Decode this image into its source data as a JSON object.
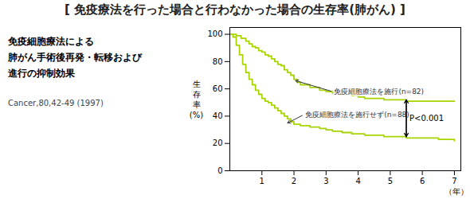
{
  "chart_data": {
    "type": "step",
    "title": "[ 免疫療法を行った場合と行わなかった場合の生存率(肺がん) ]",
    "subtitle": [
      "免疫細胞療法による",
      "肺がん手術後再発・転移および",
      "進行の抑制効果"
    ],
    "xlabel": "（年）",
    "ylabel": "生\n存\n率\n(%)",
    "series": [
      {
        "name": "免疫細胞療法を施行(n=82)",
        "color": "#a8d400",
        "x": [
          0,
          0.1,
          0.2,
          0.35,
          0.5,
          0.6,
          0.7,
          0.8,
          0.9,
          1.0,
          1.1,
          1.2,
          1.3,
          1.4,
          1.5,
          1.6,
          1.7,
          1.8,
          1.9,
          2.0,
          2.1,
          2.2,
          2.5,
          2.8,
          3.0,
          3.2,
          3.5,
          3.8,
          4.0,
          4.2,
          4.5,
          4.8,
          5.0,
          5.2,
          5.5,
          6.0,
          6.5,
          7.0
        ],
        "values": [
          100,
          100,
          99,
          97,
          95,
          93,
          91,
          90,
          88,
          87,
          85,
          84,
          82,
          80,
          78,
          77,
          74,
          72,
          70,
          67,
          65,
          63,
          61,
          59,
          58,
          57,
          56,
          55,
          54,
          53,
          53,
          52,
          52,
          52,
          51,
          51,
          51,
          51
        ]
      },
      {
        "name": "免疫細胞療法を施行せず(n=88)",
        "color": "#a8d400",
        "x": [
          0,
          0.1,
          0.2,
          0.3,
          0.4,
          0.5,
          0.6,
          0.7,
          0.8,
          0.9,
          1.0,
          1.1,
          1.2,
          1.3,
          1.4,
          1.5,
          1.6,
          1.7,
          1.8,
          1.9,
          2.0,
          2.2,
          2.5,
          2.8,
          3.0,
          3.2,
          3.5,
          3.8,
          4.0,
          4.2,
          4.5,
          4.8,
          5.0,
          5.2,
          5.5,
          6.0,
          6.5,
          7.0
        ],
        "values": [
          100,
          98,
          92,
          85,
          78,
          72,
          67,
          63,
          59,
          56,
          53,
          51,
          50,
          48,
          46,
          44,
          42,
          40,
          38,
          36,
          34,
          33,
          32,
          31,
          30,
          29,
          28,
          27,
          27,
          26,
          26,
          25,
          25,
          25,
          24,
          24,
          23,
          22
        ]
      }
    ],
    "annotations": [
      {
        "text": "免疫細胞療法を施行(n=82)",
        "x": 2.05,
        "y": 66,
        "text_x": 3.2,
        "text_y": 58
      },
      {
        "text": "免疫細胞療法を施行せず(n=88)",
        "x": 1.8,
        "y": 35,
        "text_x": 2.3,
        "text_y": 41
      },
      {
        "text": "P<0.001",
        "x": 5.5,
        "y": 25,
        "y2": 52,
        "text_x": 5.6,
        "text_y": 38.5
      },
      {
        "text": "Cancer,80,42-49 (1997)"
      }
    ],
    "xlim": [
      0,
      7.2
    ],
    "ylim": [
      0,
      105
    ],
    "xticks": [
      1,
      2,
      3,
      4,
      5,
      6,
      7
    ],
    "yticks": [
      0,
      20,
      40,
      60,
      80,
      100
    ],
    "grid": false
  }
}
